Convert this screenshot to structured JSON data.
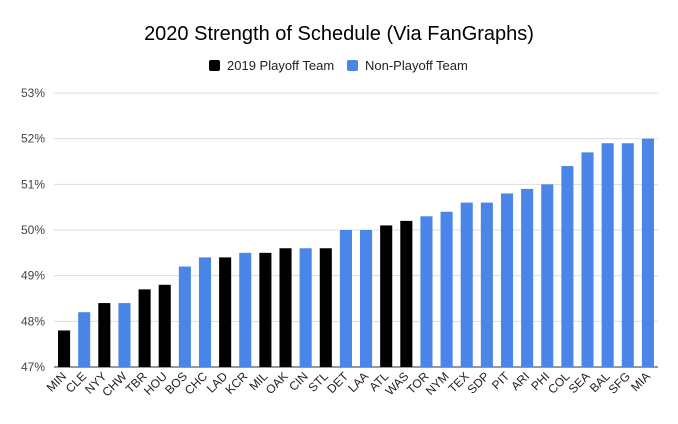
{
  "chart_data": {
    "type": "bar",
    "title": "2020 Strength of Schedule (Via FanGraphs)",
    "legend": {
      "position": "top",
      "items": [
        {
          "label": "2019 Playoff Team",
          "color": "#000000"
        },
        {
          "label": "Non-Playoff Team",
          "color": "#4a86e8"
        }
      ]
    },
    "ylim": [
      47,
      53
    ],
    "yticks": [
      47,
      48,
      49,
      50,
      51,
      52,
      53
    ],
    "ytick_labels": [
      "47%",
      "48%",
      "49%",
      "50%",
      "51%",
      "52%",
      "53%"
    ],
    "grid": true,
    "categories": [
      "MIN",
      "CLE",
      "NYY",
      "CHW",
      "TBR",
      "HOU",
      "BOS",
      "CHC",
      "LAD",
      "KCR",
      "MIL",
      "OAK",
      "CIN",
      "STL",
      "DET",
      "LAA",
      "ATL",
      "WAS",
      "TOR",
      "NYM",
      "TEX",
      "SDP",
      "PIT",
      "ARI",
      "PHI",
      "COL",
      "SEA",
      "BAL",
      "SFG",
      "MIA"
    ],
    "values": [
      47.8,
      48.2,
      48.4,
      48.4,
      48.7,
      48.8,
      49.2,
      49.4,
      49.4,
      49.5,
      49.5,
      49.6,
      49.6,
      49.6,
      50.0,
      50.0,
      50.1,
      50.2,
      50.3,
      50.4,
      50.6,
      50.6,
      50.8,
      50.9,
      51.0,
      51.4,
      51.7,
      51.9,
      51.9,
      52.0
    ],
    "playoff_team": [
      true,
      false,
      true,
      false,
      true,
      true,
      false,
      false,
      true,
      false,
      true,
      true,
      false,
      true,
      false,
      false,
      true,
      true,
      false,
      false,
      false,
      false,
      false,
      false,
      false,
      false,
      false,
      false,
      false,
      false
    ]
  }
}
